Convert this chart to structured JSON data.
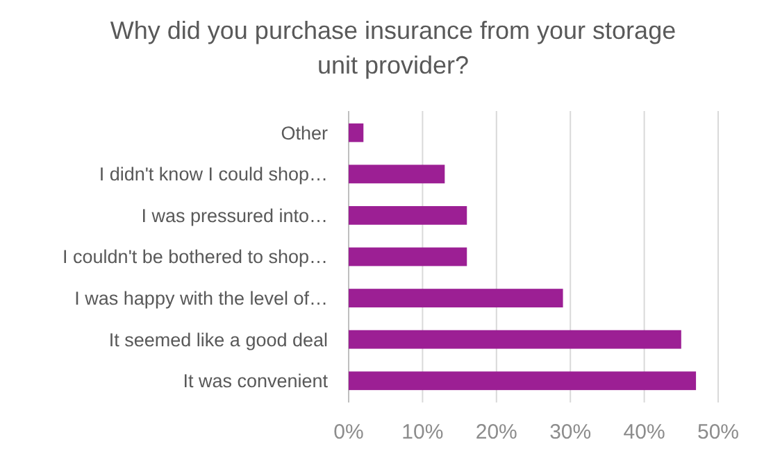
{
  "chart_data": {
    "type": "bar",
    "orientation": "horizontal",
    "title": "Why did you purchase insurance from your storage unit provider?",
    "categories": [
      "Other",
      "I didn't know I could shop…",
      "I was pressured into…",
      "I couldn't be bothered to shop…",
      "I was happy with the level of…",
      "It seemed like a good deal",
      "It was convenient"
    ],
    "values": [
      2,
      13,
      16,
      16,
      29,
      45,
      47
    ],
    "color": "#9c1f94",
    "xlim": [
      0,
      50
    ],
    "xticks": [
      {
        "value": 0,
        "label": "0%"
      },
      {
        "value": 10,
        "label": "10%"
      },
      {
        "value": 20,
        "label": "20%"
      },
      {
        "value": 30,
        "label": "30%"
      },
      {
        "value": 40,
        "label": "40%"
      },
      {
        "value": 50,
        "label": "50%"
      }
    ],
    "grid": "x"
  }
}
